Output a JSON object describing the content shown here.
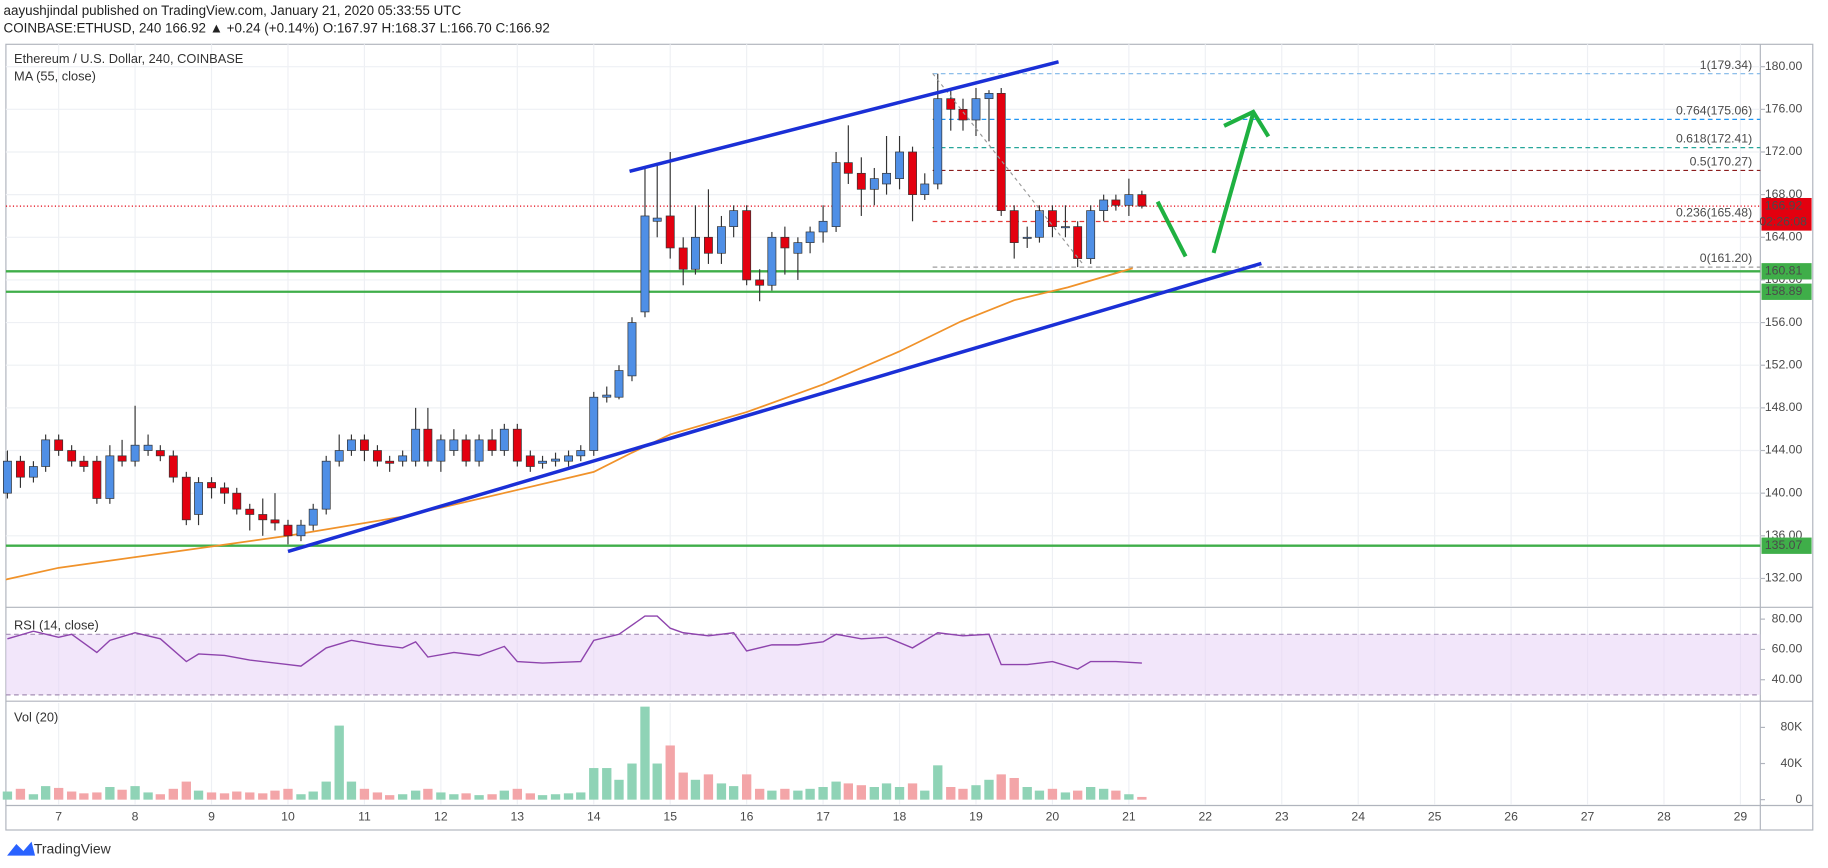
{
  "header": {
    "author_line": "aayushjindal published on TradingView.com, January 21, 2020 05:33:55 UTC",
    "symbol_line": "COINBASE:ETHUSD, 240  166.92 ▲ +0.24 (+0.14%)  O:167.97  H:168.37  L:166.70  C:166.92"
  },
  "footer": {
    "brand": "TradingView"
  },
  "chart_data": [
    {
      "type": "candlestick",
      "title": "Ethereum / U.S. Dollar, 240, COINBASE",
      "x": [
        6.33,
        6.5,
        6.67,
        6.83,
        7,
        7.17,
        7.33,
        7.5,
        7.67,
        7.83,
        8,
        8.17,
        8.33,
        8.5,
        8.67,
        8.83,
        9,
        9.17,
        9.33,
        9.5,
        9.67,
        9.83,
        10,
        10.17,
        10.33,
        10.5,
        10.67,
        10.83,
        11,
        11.17,
        11.33,
        11.5,
        11.67,
        11.83,
        12,
        12.17,
        12.33,
        12.5,
        12.67,
        12.83,
        13,
        13.17,
        13.33,
        13.5,
        13.67,
        13.83,
        14,
        14.17,
        14.33,
        14.5,
        14.67,
        14.83,
        15,
        15.17,
        15.33,
        15.5,
        15.67,
        15.83,
        16,
        16.17,
        16.33,
        16.5,
        16.67,
        16.83,
        17,
        17.17,
        17.33,
        17.5,
        17.67,
        17.83,
        18,
        18.17,
        18.33,
        18.5,
        18.67,
        18.83,
        19,
        19.17,
        19.33,
        19.5,
        19.67,
        19.83,
        20,
        20.17,
        20.33,
        20.5,
        20.67,
        20.83,
        21,
        21.17
      ],
      "open": [
        140,
        143,
        141.5,
        142.5,
        145,
        144,
        143,
        143,
        139.5,
        143.5,
        143,
        144,
        144,
        143.5,
        141.5,
        138,
        141,
        140.5,
        140,
        138.5,
        138,
        137.5,
        137,
        136,
        137,
        138.5,
        143,
        144,
        145,
        144,
        143,
        143,
        143,
        146,
        143,
        144,
        145,
        143,
        145,
        144,
        146,
        143.5,
        142.8,
        143,
        143,
        143.5,
        144,
        149,
        149,
        151,
        157,
        165.5,
        166,
        163,
        161,
        164,
        162.5,
        165,
        166.5,
        160,
        159.5,
        164,
        162.5,
        163.5,
        164.5,
        165,
        171,
        170,
        168.5,
        169,
        169.5,
        172,
        168,
        169,
        177,
        176,
        175,
        177,
        177.5,
        166.5,
        164,
        164,
        166.5,
        165,
        165,
        162,
        166.5,
        167.5,
        167,
        168
      ],
      "high": [
        144,
        143.5,
        143,
        145.5,
        145.5,
        144.5,
        143.5,
        143.5,
        144.5,
        145,
        148.2,
        145.5,
        144.5,
        144,
        142,
        141.5,
        141.5,
        141,
        140.5,
        139,
        139.5,
        140,
        137.5,
        137.5,
        139,
        143.5,
        145.5,
        145.5,
        145.5,
        144.5,
        143.5,
        144,
        148,
        148,
        145.5,
        146,
        145.5,
        145.5,
        146,
        146.5,
        146.5,
        144,
        143.5,
        143.8,
        144,
        144.5,
        149.5,
        150,
        152,
        156.5,
        170.5,
        171,
        172,
        164,
        167,
        168.5,
        166,
        167,
        167,
        161,
        164.5,
        165,
        164,
        165,
        167,
        172,
        174.5,
        171.5,
        170.5,
        173.5,
        173.5,
        172.5,
        170,
        179.34,
        178,
        177,
        178,
        177.8,
        178,
        167,
        165,
        167,
        167,
        167,
        165.5,
        167,
        168,
        168,
        169.5,
        168.37
      ],
      "low": [
        139.5,
        140.5,
        141,
        142,
        143.5,
        142.5,
        142,
        139,
        139,
        142.5,
        142.5,
        143.5,
        143,
        141,
        137,
        137,
        139.5,
        139,
        138,
        136.5,
        136,
        136.5,
        135.2,
        135.5,
        136.5,
        138,
        142.5,
        143.5,
        143,
        142.5,
        142,
        142.5,
        142.5,
        142.5,
        142,
        143.5,
        142.5,
        142.5,
        143.5,
        143.5,
        142.5,
        142,
        142.3,
        142.5,
        142.5,
        143,
        143.5,
        148.5,
        148.8,
        150.5,
        156.5,
        164,
        162,
        159.5,
        160.5,
        161.5,
        161.5,
        164,
        159.5,
        158,
        159,
        160.5,
        160,
        162.5,
        163.5,
        164.5,
        169,
        166,
        167,
        168,
        168.5,
        165.5,
        167.5,
        168.5,
        174,
        174,
        173.5,
        173,
        166,
        162,
        163,
        163.5,
        164,
        164,
        161.2,
        161.5,
        165.5,
        166.5,
        166,
        166.7
      ],
      "close": [
        143,
        141.5,
        142.5,
        145,
        144,
        143,
        142.5,
        139.5,
        143.5,
        143,
        144.5,
        144.5,
        143.5,
        141.5,
        137.5,
        141,
        140.5,
        140,
        138.5,
        138,
        137.5,
        137.2,
        136,
        137,
        138.5,
        143,
        144,
        145,
        144,
        143,
        142.8,
        143.5,
        146,
        143,
        145,
        145,
        143,
        145,
        144,
        146,
        143,
        142.5,
        143,
        143.2,
        143.5,
        144,
        149,
        149.2,
        151.5,
        156,
        166,
        165.8,
        163,
        161,
        164,
        162.5,
        165,
        166.5,
        160,
        159.5,
        164,
        163,
        163.5,
        164.5,
        165.5,
        171,
        170,
        168.5,
        169.5,
        170,
        172,
        168,
        169,
        177,
        176,
        175,
        177,
        177.5,
        166.5,
        163.5,
        164,
        166.5,
        165,
        165,
        162,
        166.5,
        167.5,
        167,
        168,
        166.92
      ],
      "up_color": "#4f8fe6",
      "down_color": "#e3000f",
      "xlim": [
        6.31,
        29.26
      ],
      "xticks": [
        7,
        8,
        9,
        10,
        11,
        12,
        13,
        14,
        15,
        16,
        17,
        18,
        19,
        20,
        21,
        22,
        23,
        24,
        25,
        26,
        27,
        28,
        29
      ],
      "ylim": [
        129.4,
        182.1
      ],
      "yticks": [
        {
          "value": 132,
          "label": "132.00"
        },
        {
          "value": 136,
          "label": "136.00"
        },
        {
          "value": 140,
          "label": "140.00"
        },
        {
          "value": 144,
          "label": "144.00"
        },
        {
          "value": 148,
          "label": "148.00"
        },
        {
          "value": 152,
          "label": "152.00"
        },
        {
          "value": 156,
          "label": "156.00"
        },
        {
          "value": 160,
          "label": "160.00"
        },
        {
          "value": 164,
          "label": "164.00"
        },
        {
          "value": 168,
          "label": "168.00"
        },
        {
          "value": 172,
          "label": "172.00"
        },
        {
          "value": 176,
          "label": "176.00"
        },
        {
          "value": 180,
          "label": "180.00"
        }
      ],
      "grid": true,
      "ma": {
        "name": "MA (55, close)",
        "color": "#f0922a",
        "x": [
          6.31,
          7,
          8.5,
          10,
          11.5,
          13,
          14,
          14.5,
          15,
          16,
          17,
          18,
          18.8,
          19.5,
          20.2,
          21.05
        ],
        "values": [
          131.9,
          133,
          134.5,
          136,
          137.8,
          140.3,
          142,
          143.8,
          145.5,
          147.6,
          150.2,
          153.3,
          156.1,
          158.1,
          159.3,
          161.1
        ]
      },
      "levels": {
        "values": [
          160.81,
          158.89,
          135.07
        ],
        "color": "#3fae49"
      },
      "fib": {
        "values": [
          179.34,
          175.06,
          172.41,
          170.27,
          165.48,
          161.2
        ],
        "value_labels": [
          "1(179.34)",
          "0.764(175.06)",
          "0.618(172.41)",
          "0.5(170.27)",
          "0.236(165.48)",
          "0(161.20)"
        ],
        "colors": [
          "#7fb6e8",
          "#2196f3",
          "#26a69a",
          "#8b1c1c",
          "#e53935",
          "#9e9e9e"
        ]
      },
      "last": {
        "value": 166.92,
        "timer": "02:26:08",
        "color": "#e3000f"
      }
    },
    {
      "type": "line",
      "title": "RSI (14, close)",
      "color": "#8e44ad",
      "x": [
        6.33,
        6.67,
        7,
        7.17,
        7.5,
        7.67,
        8,
        8.33,
        8.67,
        8.83,
        9.17,
        9.5,
        10,
        10.17,
        10.5,
        10.83,
        11.17,
        11.5,
        11.67,
        11.83,
        12.17,
        12.5,
        12.83,
        13,
        13.33,
        13.83,
        14,
        14.33,
        14.67,
        14.83,
        15,
        15.17,
        15.5,
        15.83,
        16,
        16.33,
        16.67,
        17,
        17.17,
        17.5,
        17.83,
        18.17,
        18.5,
        18.83,
        19.17,
        19.33,
        19.67,
        20,
        20.33,
        20.5,
        20.83,
        21.17
      ],
      "values": [
        67,
        72,
        68,
        70,
        58,
        66,
        71,
        67,
        52,
        57,
        56,
        53,
        50,
        49,
        61,
        66,
        63,
        61,
        65,
        55,
        58,
        56,
        62,
        52,
        51,
        52,
        66,
        70,
        82,
        82,
        74,
        71,
        69,
        71,
        59,
        63,
        63,
        65,
        70,
        67,
        68,
        61,
        71,
        69,
        70,
        50,
        50,
        52,
        47,
        52,
        52,
        51
      ],
      "band": [
        30,
        70
      ],
      "ylim": [
        27,
        87
      ],
      "yticks": [
        {
          "value": 40,
          "label": "40.00"
        },
        {
          "value": 60,
          "label": "60.00"
        },
        {
          "value": 80,
          "label": "80.00"
        }
      ]
    },
    {
      "type": "bar",
      "title": "Vol (20)",
      "up_color": "#8fd3b6",
      "down_color": "#f3a5a8",
      "values": [
        9000,
        12000,
        6000,
        15000,
        13000,
        9000,
        7000,
        8000,
        14000,
        11000,
        15000,
        8000,
        6000,
        12000,
        20000,
        10000,
        8000,
        7000,
        9000,
        8000,
        7000,
        10000,
        12000,
        6000,
        9000,
        20000,
        82000,
        20000,
        12000,
        8000,
        5000,
        6000,
        10000,
        12000,
        8000,
        6000,
        7000,
        5000,
        6000,
        10000,
        12000,
        7000,
        5000,
        6000,
        7000,
        8000,
        35000,
        35000,
        22000,
        40000,
        103000,
        40000,
        60000,
        30000,
        22000,
        28000,
        18000,
        15000,
        28000,
        12000,
        10000,
        12000,
        10000,
        12000,
        14000,
        20000,
        18000,
        16000,
        14000,
        18000,
        14000,
        18000,
        10000,
        38000,
        14000,
        12000,
        16000,
        22000,
        28000,
        24000,
        14000,
        10000,
        12000,
        8000,
        10000,
        14000,
        12000,
        10000,
        6000,
        3000
      ],
      "ylim": [
        -5200,
        107100
      ],
      "yticks": [
        0,
        {
          "value": 40000,
          "label": "40K"
        },
        {
          "value": 80000,
          "label": "80K"
        }
      ]
    }
  ]
}
